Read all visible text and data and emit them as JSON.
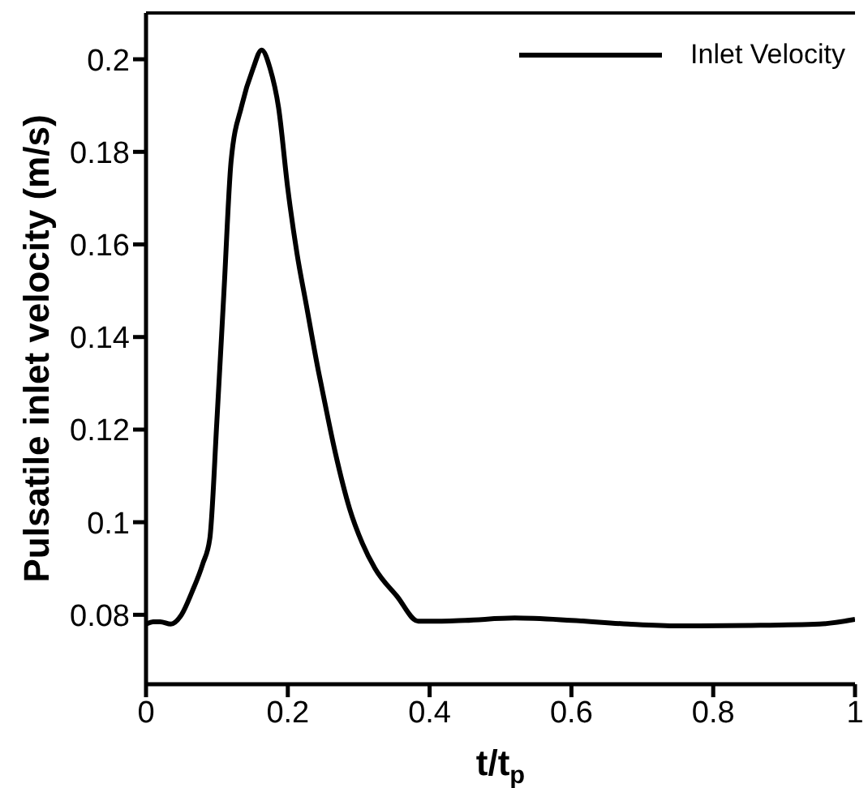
{
  "chart_data": {
    "type": "line",
    "xlabel": "t/t$_{p}$",
    "ylabel": "Pulsatile inlet velocity (m/s)",
    "xlim": [
      0,
      1
    ],
    "xticks": [
      0,
      0.2,
      0.4,
      0.6,
      0.8,
      1
    ],
    "ylim": [
      0.065,
      0.21
    ],
    "yticks": [
      0.08,
      0.1,
      0.12,
      0.14,
      0.16,
      0.18,
      0.2
    ],
    "legend": "top right",
    "marker": "none",
    "line_style": "solid",
    "grid": false,
    "series": [
      {
        "name": "Inlet Velocity",
        "color": "#000000",
        "x": [
          0,
          0.01,
          0.02,
          0.035,
          0.05,
          0.065,
          0.08,
          0.09,
          0.1,
          0.11,
          0.12,
          0.135,
          0.151,
          0.163,
          0.175,
          0.187,
          0.2,
          0.213,
          0.226,
          0.244,
          0.248,
          0.267,
          0.287,
          0.305,
          0.323,
          0.354,
          0.384,
          0.4,
          0.45,
          0.52,
          0.6,
          0.68,
          0.75,
          0.85,
          0.95,
          1
        ],
        "values": [
          0.078,
          0.0785,
          0.0785,
          0.078,
          0.08,
          0.085,
          0.091,
          0.0965,
          0.122,
          0.15,
          0.178,
          0.19,
          0.198,
          0.202,
          0.198,
          0.1895,
          0.172,
          0.158,
          0.147,
          0.132,
          0.129,
          0.115,
          0.103,
          0.0955,
          0.09,
          0.084,
          0.0786,
          0.0786,
          0.0788,
          0.0793,
          0.0788,
          0.078,
          0.0776,
          0.0777,
          0.078,
          0.079
        ]
      }
    ]
  }
}
